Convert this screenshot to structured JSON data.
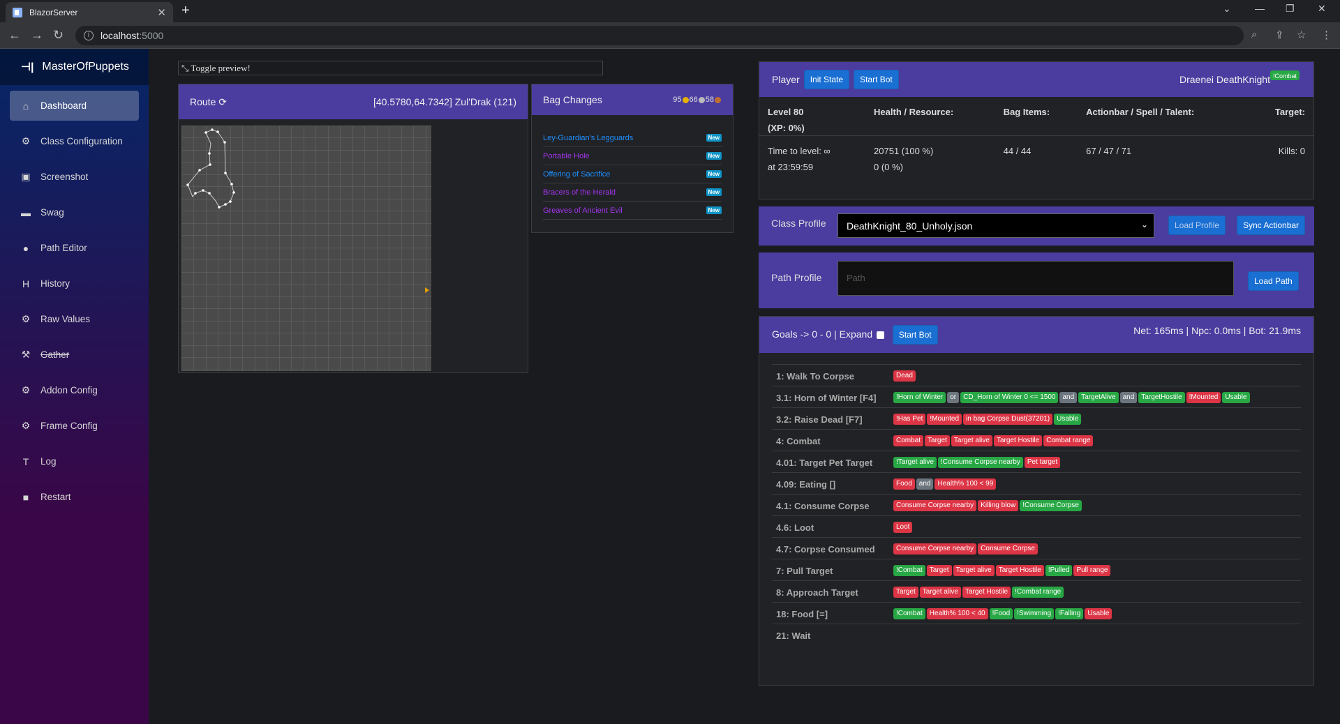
{
  "browser": {
    "tab_title": "BlazorServer",
    "url_host": "localhost",
    "url_port": ":5000"
  },
  "sidebar": {
    "brand": "MasterOfPuppets",
    "items": [
      {
        "label": "Dashboard",
        "icon": "home-icon",
        "glyph": "⌂",
        "active": true,
        "strike": false
      },
      {
        "label": "Class Configuration",
        "icon": "gear-icon",
        "glyph": "⚙",
        "active": false,
        "strike": false
      },
      {
        "label": "Screenshot",
        "icon": "image-icon",
        "glyph": "▣",
        "active": false,
        "strike": false
      },
      {
        "label": "Swag",
        "icon": "inbox-icon",
        "glyph": "▬",
        "active": false,
        "strike": false
      },
      {
        "label": "Path Editor",
        "icon": "circle-icon",
        "glyph": "●",
        "active": false,
        "strike": false
      },
      {
        "label": "History",
        "icon": "header-icon",
        "glyph": "H",
        "active": false,
        "strike": false
      },
      {
        "label": "Raw Values",
        "icon": "gear-icon",
        "glyph": "⚙",
        "active": false,
        "strike": false
      },
      {
        "label": "Gather",
        "icon": "gather-icon",
        "glyph": "⚒",
        "active": false,
        "strike": true
      },
      {
        "label": "Addon Config",
        "icon": "gear-icon",
        "glyph": "⚙",
        "active": false,
        "strike": false
      },
      {
        "label": "Frame Config",
        "icon": "gear-icon",
        "glyph": "⚙",
        "active": false,
        "strike": false
      },
      {
        "label": "Log",
        "icon": "text-icon",
        "glyph": "T",
        "active": false,
        "strike": false
      },
      {
        "label": "Restart",
        "icon": "stop-icon",
        "glyph": "■",
        "active": false,
        "strike": false
      }
    ]
  },
  "toggle_preview": "Toggle preview!",
  "route": {
    "title": "Route",
    "coords": "[40.5780,64.7342] Zul'Drak (121)"
  },
  "bag": {
    "title": "Bag Changes",
    "gold": "95",
    "silver": "66",
    "copper": "58",
    "items": [
      {
        "name": "Ley-Guardian's Legguards",
        "color": "#1e90ff",
        "badge": "New"
      },
      {
        "name": "Portable Hole",
        "color": "#a335ee",
        "badge": "New"
      },
      {
        "name": "Offering of Sacrifice",
        "color": "#1e90ff",
        "badge": "New"
      },
      {
        "name": "Bracers of the Herald",
        "color": "#a335ee",
        "badge": "New"
      },
      {
        "name": "Greaves of Ancient Evil",
        "color": "#a335ee",
        "badge": "New"
      }
    ]
  },
  "player": {
    "title": "Player",
    "init_state": "Init State",
    "start_bot": "Start Bot",
    "race_class": "Draenei DeathKnight",
    "combat_badge": "!Combat",
    "headers": [
      "Level 80",
      "(XP: 0%)",
      "Health / Resource:",
      "Bag Items:",
      "Actionbar / Spell / Talent:",
      "Target:"
    ],
    "time_to_level": "Time to level: ∞",
    "at_time": "at 23:59:59",
    "health": "20751 (100 %)",
    "resource": "0 (0 %)",
    "bag_items": "44 / 44",
    "actionbar": "67 / 47 / 71",
    "kills": "Kills: 0"
  },
  "class_profile": {
    "label": "Class Profile",
    "value": "DeathKnight_80_Unholy.json",
    "load": "Load Profile",
    "sync": "Sync Actionbar"
  },
  "path_profile": {
    "label": "Path Profile",
    "placeholder": "Path",
    "load": "Load Path"
  },
  "goals": {
    "title": "Goals -> 0 - 0 | Expand",
    "start_bot": "Start Bot",
    "stats": "Net: 165ms | Npc: 0.0ms | Bot: 21.9ms",
    "rows": [
      {
        "name": "1: Walk To Corpse",
        "tags": [
          [
            "Dead",
            "r"
          ]
        ]
      },
      {
        "name": "3.1: Horn of Winter [F4]",
        "tags": [
          [
            "!Horn of Winter",
            "g"
          ],
          [
            "or",
            "s"
          ],
          [
            "CD_Horn of Winter 0 <= 1500",
            "g"
          ],
          [
            "and",
            "s"
          ],
          [
            "TargetAlive",
            "g"
          ],
          [
            "and",
            "s"
          ],
          [
            "TargetHostile",
            "g"
          ],
          [
            "!Mounted",
            "r"
          ],
          [
            "Usable",
            "g"
          ]
        ]
      },
      {
        "name": "3.2: Raise Dead [F7]",
        "tags": [
          [
            "!Has Pet",
            "r"
          ],
          [
            "!Mounted",
            "r"
          ],
          [
            "in bag Corpse Dust(37201)",
            "r"
          ],
          [
            "Usable",
            "g"
          ]
        ]
      },
      {
        "name": "4: Combat",
        "tags": [
          [
            "Combat",
            "r"
          ],
          [
            "Target",
            "r"
          ],
          [
            "Target alive",
            "r"
          ],
          [
            "Target Hostile",
            "r"
          ],
          [
            "Combat range",
            "r"
          ]
        ]
      },
      {
        "name": "4.01: Target Pet Target",
        "tags": [
          [
            "!Target alive",
            "g"
          ],
          [
            "!Consume Corpse nearby",
            "g"
          ],
          [
            "Pet target",
            "r"
          ]
        ]
      },
      {
        "name": "4.09: Eating []",
        "tags": [
          [
            "Food",
            "r"
          ],
          [
            "and",
            "s"
          ],
          [
            "Health% 100 < 99",
            "r"
          ]
        ]
      },
      {
        "name": "4.1: Consume Corpse",
        "tags": [
          [
            "Consume Corpse nearby",
            "r"
          ],
          [
            "Killing blow",
            "r"
          ],
          [
            "!Consume Corpse",
            "g"
          ]
        ]
      },
      {
        "name": "4.6: Loot",
        "tags": [
          [
            "Loot",
            "r"
          ]
        ]
      },
      {
        "name": "4.7: Corpse Consumed",
        "tags": [
          [
            "Consume Corpse nearby",
            "r"
          ],
          [
            "Consume Corpse",
            "r"
          ]
        ]
      },
      {
        "name": "7: Pull Target",
        "tags": [
          [
            "!Combat",
            "g"
          ],
          [
            "Target",
            "r"
          ],
          [
            "Target alive",
            "r"
          ],
          [
            "Target Hostile",
            "r"
          ],
          [
            "!Pulled",
            "g"
          ],
          [
            "Pull range",
            "r"
          ]
        ]
      },
      {
        "name": "8: Approach Target",
        "tags": [
          [
            "Target",
            "r"
          ],
          [
            "Target alive",
            "r"
          ],
          [
            "Target Hostile",
            "r"
          ],
          [
            "!Combat range",
            "g"
          ]
        ]
      },
      {
        "name": "18: Food [=]",
        "tags": [
          [
            "!Combat",
            "g"
          ],
          [
            "Health% 100 < 40",
            "r"
          ],
          [
            "!Food",
            "g"
          ],
          [
            "!Swimming",
            "g"
          ],
          [
            "!Falling",
            "g"
          ],
          [
            "Usable",
            "r"
          ]
        ]
      },
      {
        "name": "21: Wait",
        "tags": []
      }
    ]
  }
}
